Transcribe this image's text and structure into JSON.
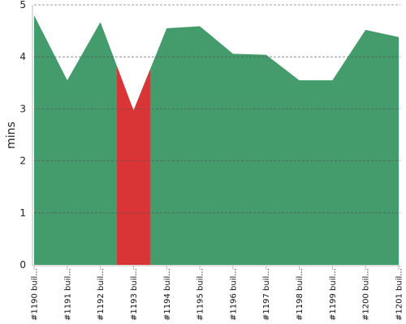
{
  "chart_data": {
    "type": "area",
    "ylabel": "mins",
    "xlabel": "",
    "ylim": [
      0,
      5
    ],
    "yticks": [
      "0",
      "1",
      "2",
      "3",
      "4",
      "5"
    ],
    "grid": true,
    "categories": [
      "#1190 buil...",
      "#1191 buil...",
      "#1192 buil...",
      "#1193 buil...",
      "#1194 buil...",
      "#1195 buil...",
      "#1196 buil...",
      "#1197 buil...",
      "#1198 buil...",
      "#1199 buil...",
      "#1200 buil...",
      "#1201 buil..."
    ],
    "values": [
      4.8,
      3.55,
      4.67,
      2.97,
      4.55,
      4.59,
      4.06,
      4.04,
      3.55,
      3.55,
      4.52,
      4.38
    ],
    "status": [
      "success",
      "success",
      "success",
      "failure",
      "success",
      "success",
      "success",
      "success",
      "success",
      "success",
      "success",
      "success"
    ],
    "colors": {
      "success": "#449b6b",
      "failure": "#d93537",
      "grid": "#555555",
      "axis": "#bbbbbb"
    }
  }
}
